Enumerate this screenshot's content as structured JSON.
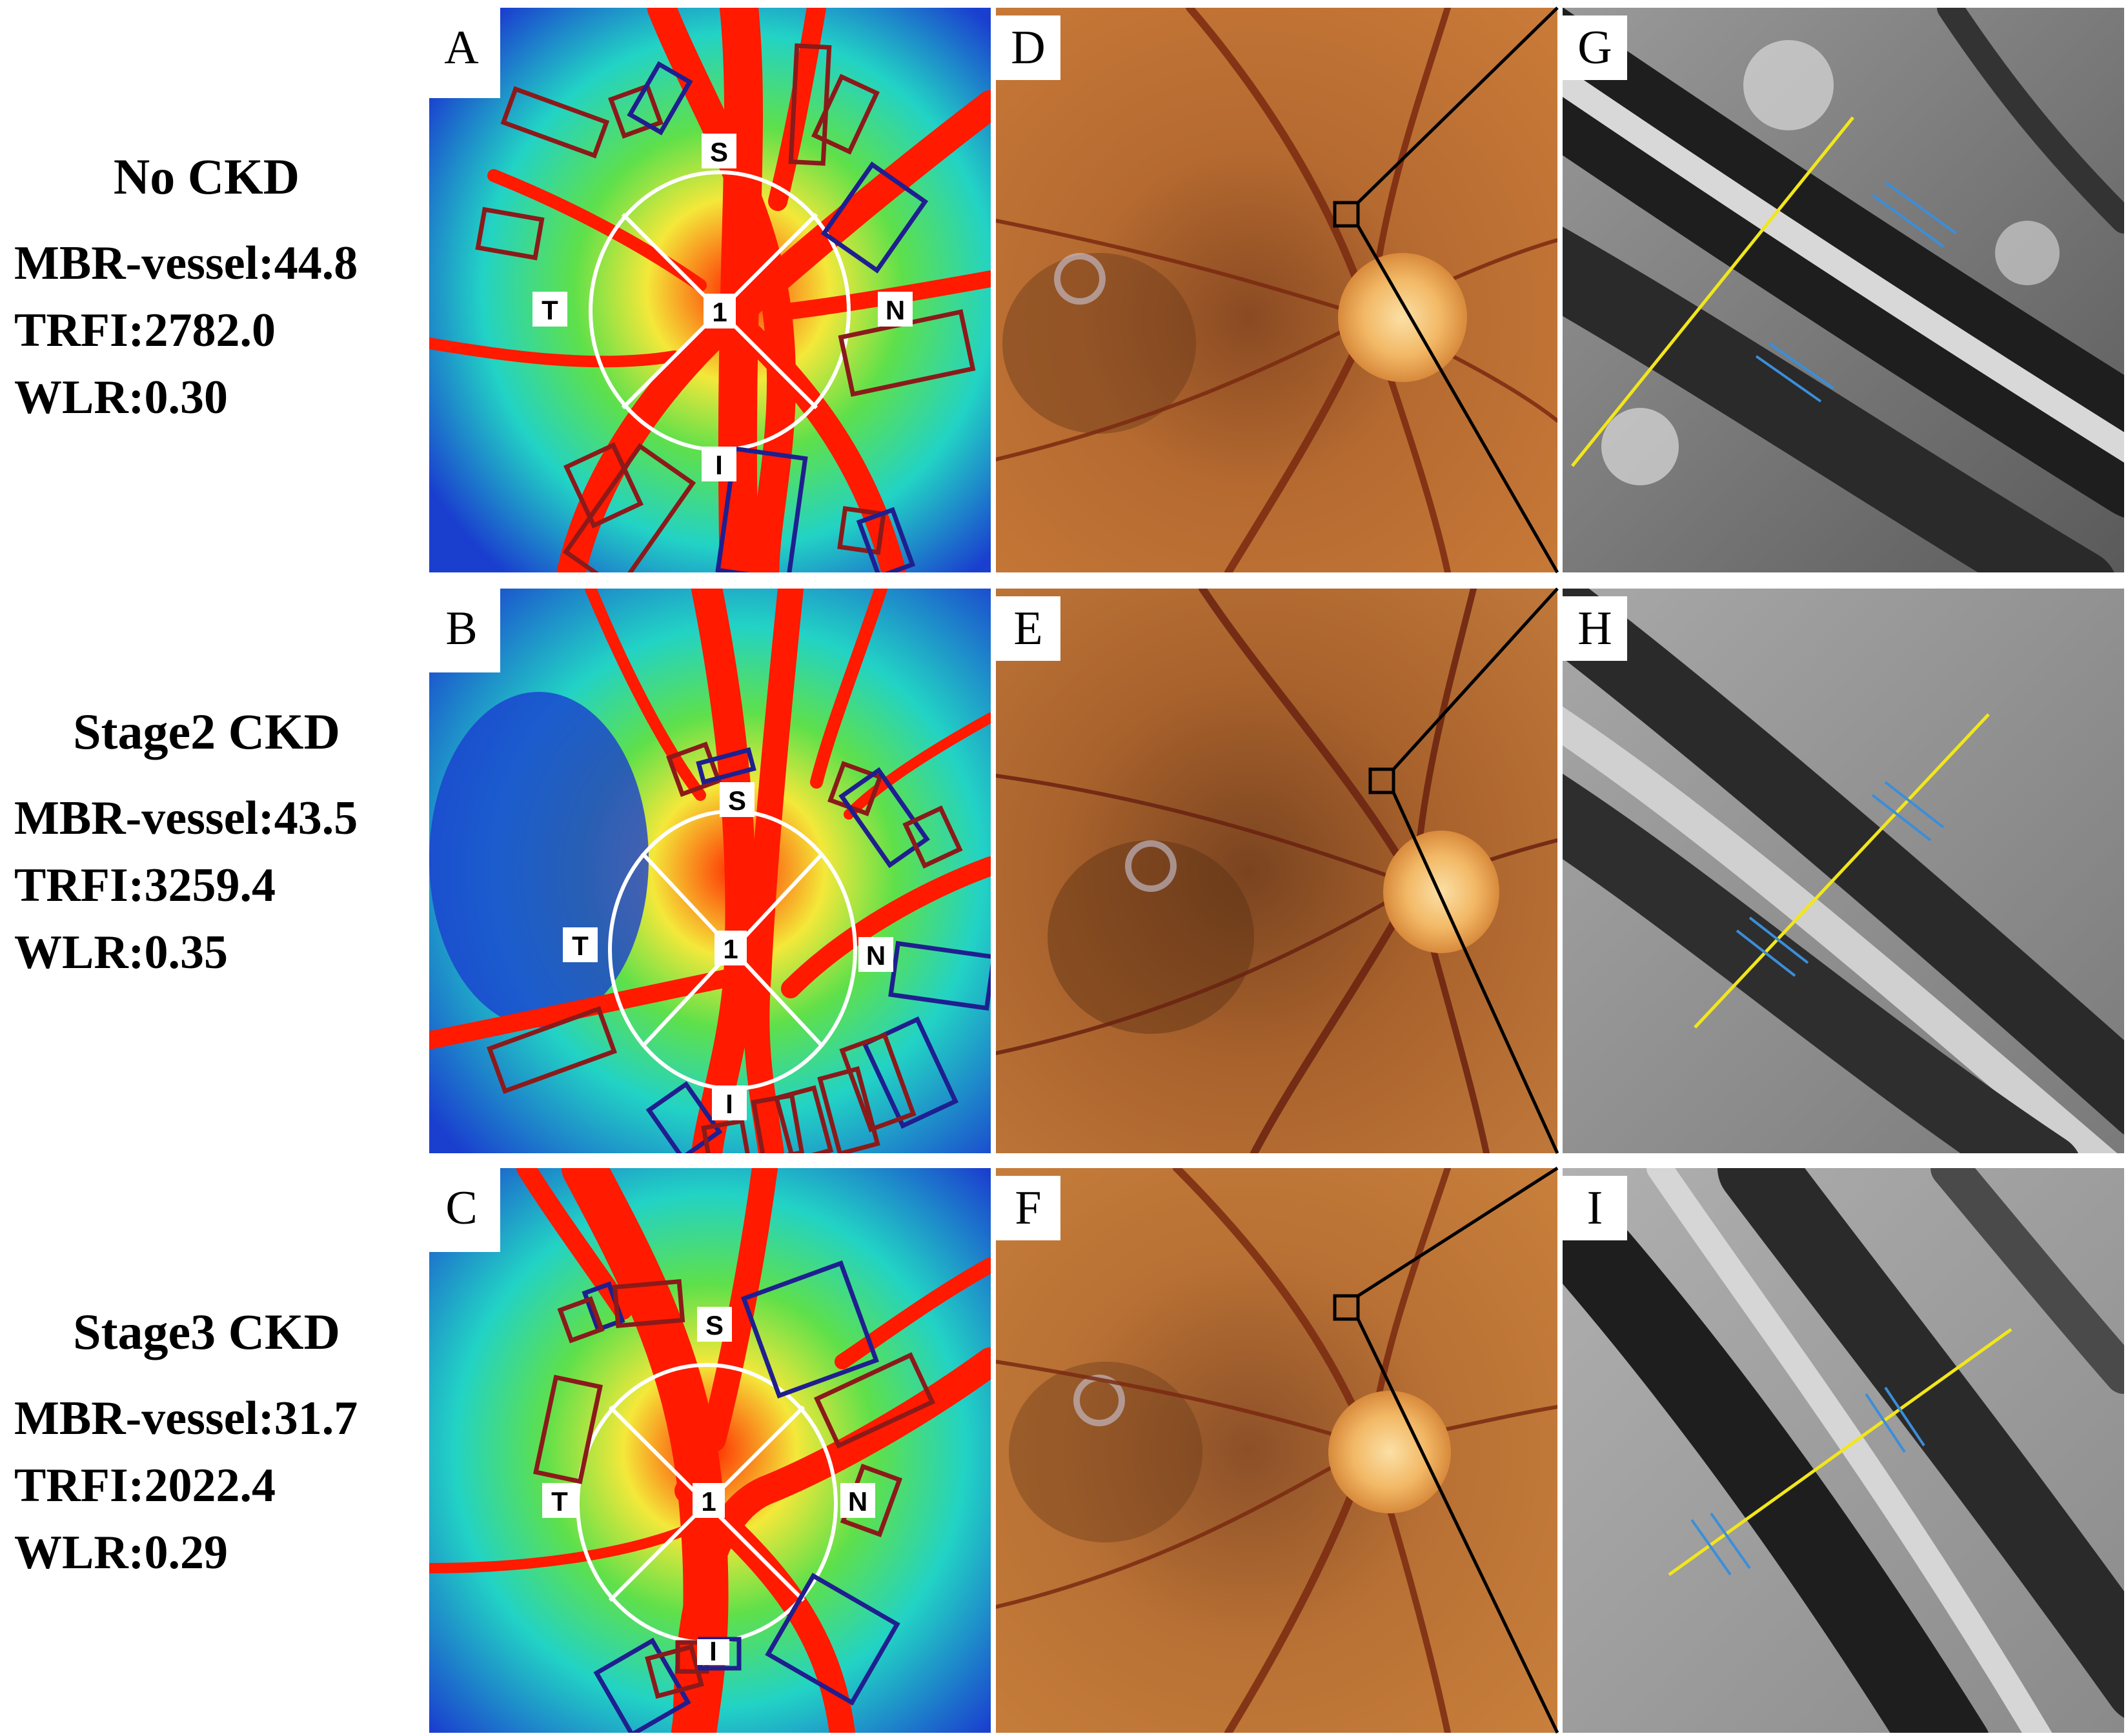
{
  "rows": [
    {
      "title": "No CKD",
      "metrics": [
        "MBR-vessel:44.8",
        "TRFI:2782.0",
        "WLR:0.30"
      ],
      "panels": [
        "A",
        "D",
        "G"
      ]
    },
    {
      "title": "Stage2 CKD",
      "metrics": [
        "MBR-vessel:43.5",
        "TRFI:3259.4",
        "WLR:0.35"
      ],
      "panels": [
        "B",
        "E",
        "H"
      ]
    },
    {
      "title": "Stage3 CKD",
      "metrics": [
        "MBR-vessel:31.7",
        "TRFI:2022.4",
        "WLR:0.29"
      ],
      "panels": [
        "C",
        "F",
        "I"
      ]
    }
  ],
  "disc_sector_labels": [
    "S",
    "T",
    "N",
    "I",
    "1"
  ],
  "colors": {
    "heatmap_low": "#1a3fcf",
    "heatmap_mid": "#22d3c5",
    "heatmap_green": "#5fe04a",
    "heatmap_yellow": "#f4e83a",
    "heatmap_high": "#ff1a00",
    "box_red": "#8b1a1a",
    "box_blue": "#1f1f8f",
    "fundus_bg": "#b8692a",
    "fundus_disc": "#f4c070",
    "measure_line": "#f2e61c",
    "measure_tick": "#3b8ed9"
  }
}
